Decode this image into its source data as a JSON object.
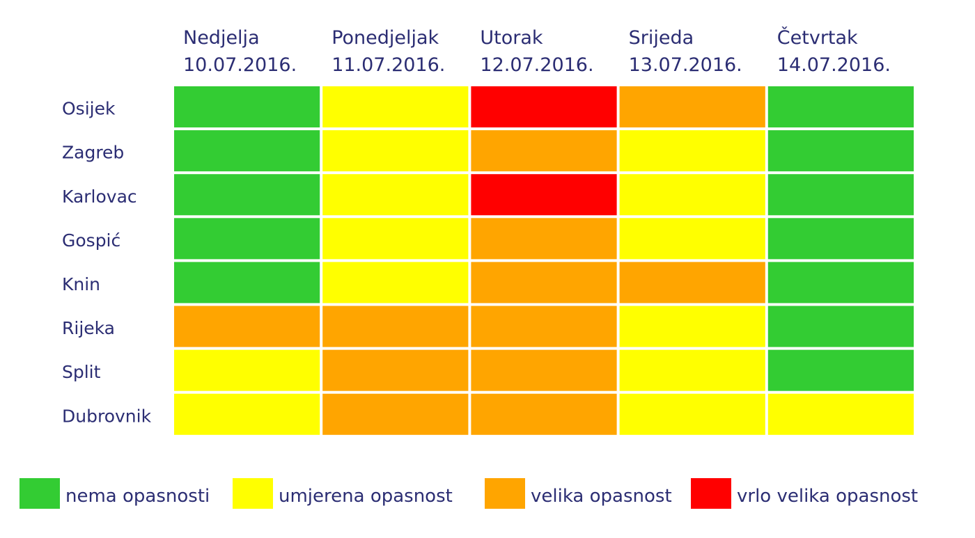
{
  "chart_data": {
    "type": "heatmap",
    "columns": [
      {
        "day": "Nedjelja",
        "date": "10.07.2016."
      },
      {
        "day": "Ponedjeljak",
        "date": "11.07.2016."
      },
      {
        "day": "Utorak",
        "date": "12.07.2016."
      },
      {
        "day": "Srijeda",
        "date": "13.07.2016."
      },
      {
        "day": "Četvrtak",
        "date": "14.07.2016."
      }
    ],
    "rows": [
      "Osijek",
      "Zagreb",
      "Karlovac",
      "Gospić",
      "Knin",
      "Rijeka",
      "Split",
      "Dubrovnik"
    ],
    "levels": [
      {
        "level": 0,
        "label": "nema opasnosti",
        "color": "#33cc33"
      },
      {
        "level": 1,
        "label": "umjerena opasnost",
        "color": "#ffff00"
      },
      {
        "level": 2,
        "label": "velika opasnost",
        "color": "#ffa500"
      },
      {
        "level": 3,
        "label": "vrlo velika opasnost",
        "color": "#ff0000"
      }
    ],
    "values": [
      [
        0,
        1,
        3,
        2,
        0
      ],
      [
        0,
        1,
        2,
        1,
        0
      ],
      [
        0,
        1,
        3,
        1,
        0
      ],
      [
        0,
        1,
        2,
        1,
        0
      ],
      [
        0,
        1,
        2,
        2,
        0
      ],
      [
        2,
        2,
        2,
        1,
        0
      ],
      [
        1,
        2,
        2,
        1,
        0
      ],
      [
        1,
        2,
        2,
        1,
        1
      ]
    ],
    "legend_position": "bottom"
  }
}
